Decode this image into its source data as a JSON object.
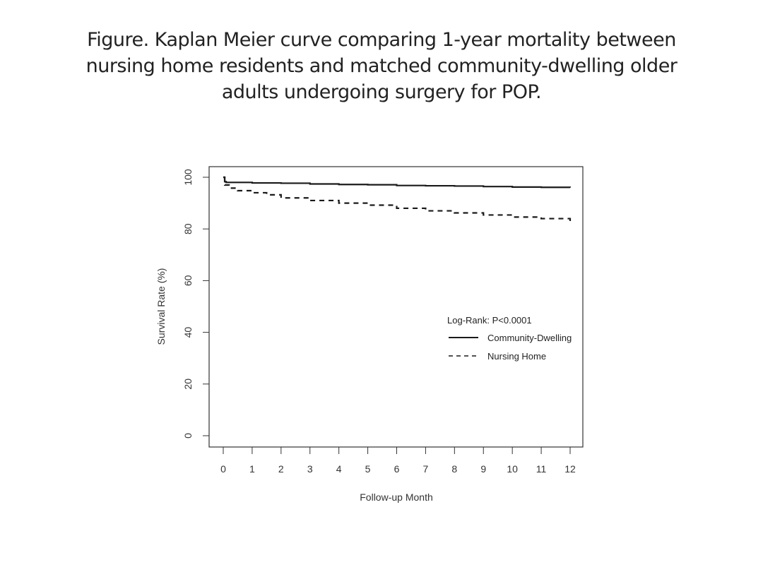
{
  "title_lines": [
    "Figure.  Kaplan Meier curve comparing 1-year mortality between",
    "nursing home residents and matched community-dwelling older",
    "adults undergoing surgery for POP."
  ],
  "chart_data": {
    "type": "line",
    "title": "Figure.  Kaplan Meier curve comparing 1-year mortality between nursing home residents and matched community-dwelling older adults undergoing surgery for POP.",
    "xlabel": "Follow-up Month",
    "ylabel": "Survival Rate (%)",
    "xlim": [
      0,
      12
    ],
    "ylim": [
      0,
      100
    ],
    "x_ticks": [
      "0",
      "1",
      "2",
      "3",
      "4",
      "5",
      "6",
      "7",
      "8",
      "9",
      "10",
      "11",
      "12"
    ],
    "y_ticks": [
      "0",
      "20",
      "40",
      "60",
      "80",
      "100"
    ],
    "grid": false,
    "legend": {
      "placement": "center-right",
      "title": "Log-Rank: P<0.0001",
      "entries": [
        "Community-Dwelling",
        "Nursing Home"
      ]
    },
    "series": [
      {
        "name": "Community-Dwelling",
        "style": "solid",
        "color": "#1a1a1a",
        "x": [
          0,
          0.05,
          0.1,
          1,
          2,
          3,
          4,
          5,
          6,
          7,
          8,
          9,
          10,
          11,
          12
        ],
        "values": [
          100,
          98.3,
          98.0,
          97.8,
          97.7,
          97.4,
          97.2,
          97.1,
          96.8,
          96.7,
          96.6,
          96.4,
          96.2,
          96.1,
          96.0
        ]
      },
      {
        "name": "Nursing Home",
        "style": "dashed",
        "color": "#1a1a1a",
        "x": [
          0,
          0.05,
          0.2,
          0.5,
          1,
          1.5,
          2,
          3,
          4,
          5,
          6,
          7,
          8,
          9,
          10,
          11,
          12
        ],
        "values": [
          100,
          97.0,
          95.8,
          94.8,
          94.0,
          93.2,
          92.0,
          91.0,
          90.0,
          89.2,
          88.0,
          87.0,
          86.2,
          85.4,
          84.6,
          84.0,
          83.0
        ]
      }
    ]
  }
}
